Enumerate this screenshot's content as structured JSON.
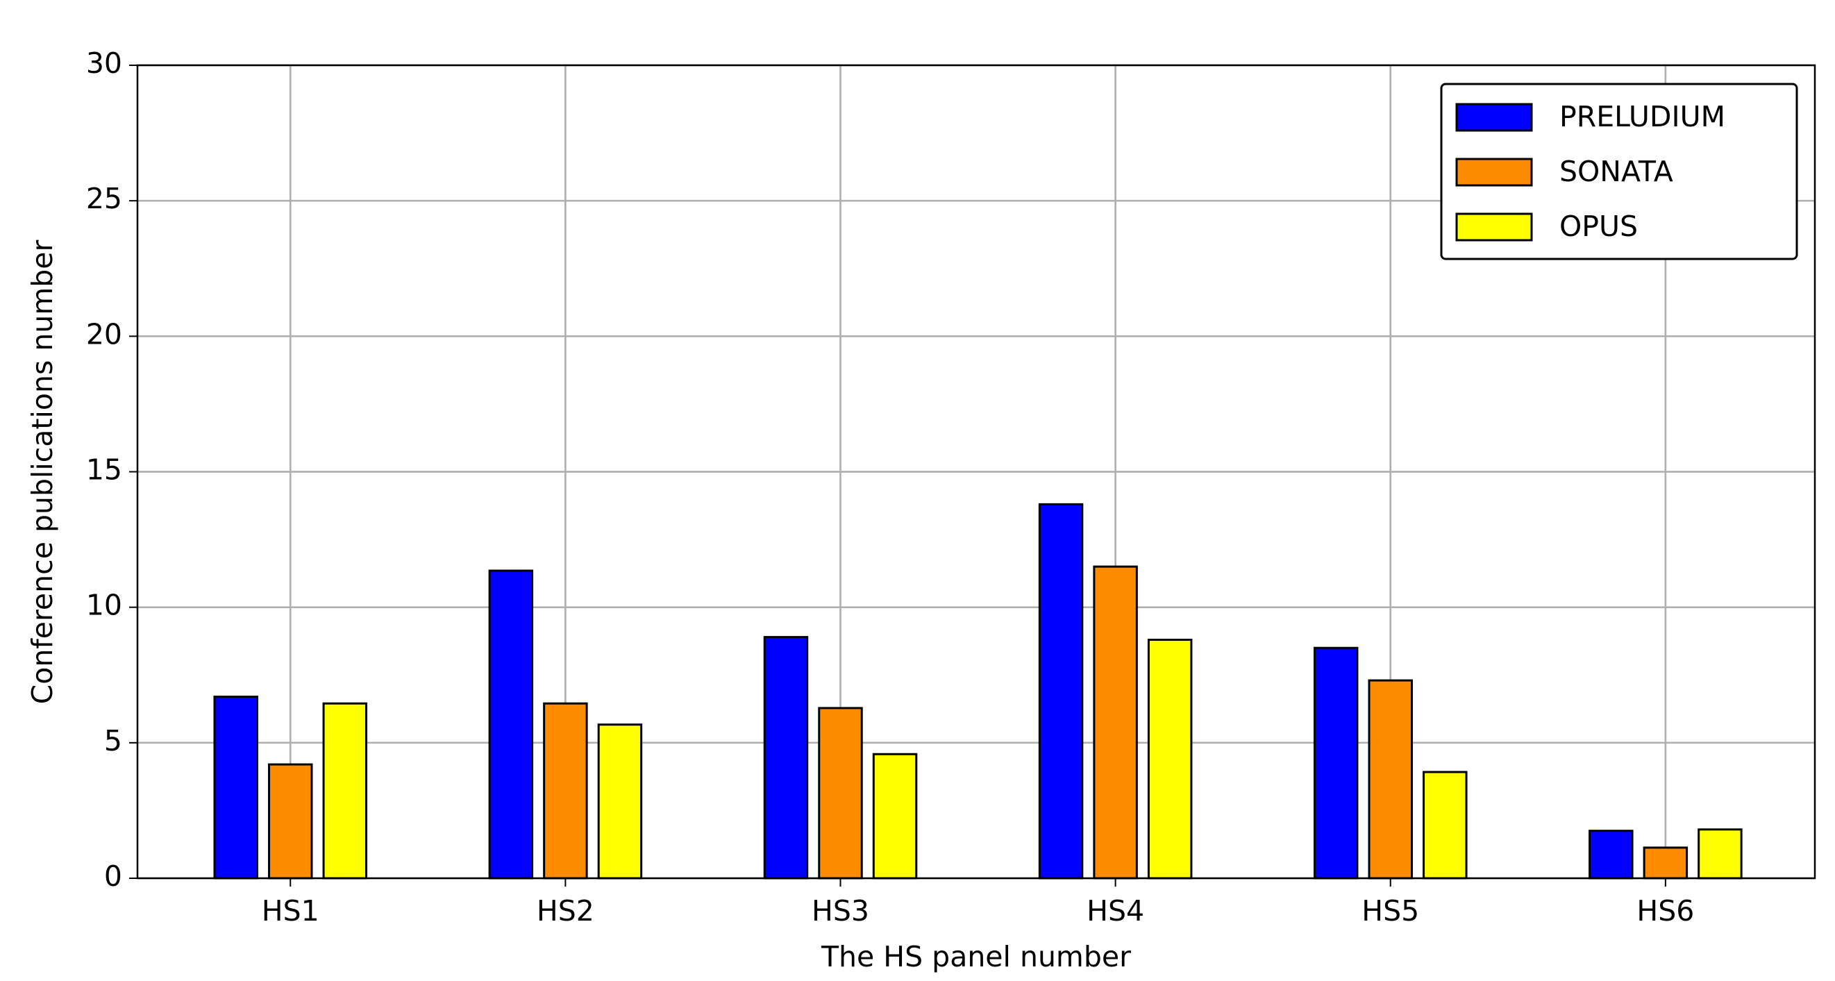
{
  "chart_data": {
    "type": "bar",
    "xlabel": "The HS panel number",
    "ylabel": "Conference publications number",
    "categories": [
      "HS1",
      "HS2",
      "HS3",
      "HS4",
      "HS5",
      "HS6"
    ],
    "series": [
      {
        "name": "PRELUDIUM",
        "color": "#0000ff",
        "values": [
          6.7,
          11.35,
          8.9,
          13.8,
          8.5,
          1.75
        ]
      },
      {
        "name": "SONATA",
        "color": "#ff8c00",
        "values": [
          4.2,
          6.45,
          6.28,
          11.5,
          7.3,
          1.13
        ]
      },
      {
        "name": "OPUS",
        "color": "#ffff00",
        "values": [
          6.45,
          5.67,
          4.58,
          8.8,
          3.92,
          1.8
        ]
      }
    ],
    "ylim": [
      0,
      30
    ],
    "yticks": [
      0,
      5,
      10,
      15,
      20,
      25,
      30
    ],
    "grid": true,
    "legend": "upper right"
  }
}
